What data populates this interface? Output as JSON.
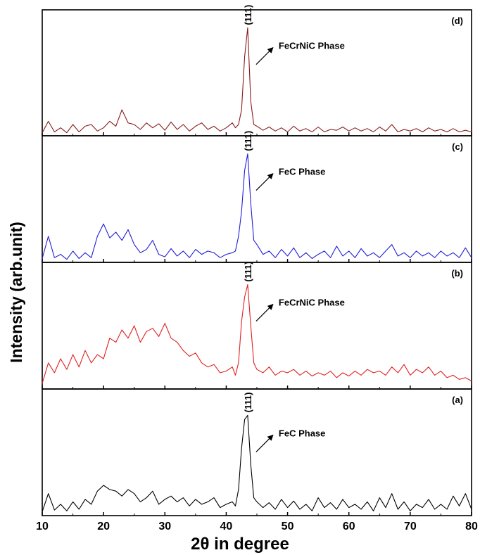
{
  "chart_data": {
    "type": "line",
    "xlabel": "2θ in degree",
    "ylabel": "Intensity (arb.unit)",
    "xlim": [
      10,
      80
    ],
    "xticks": [
      10,
      20,
      30,
      40,
      50,
      60,
      70,
      80
    ],
    "xtick_labels": [
      "10",
      "20",
      "30",
      "40",
      "50",
      "60",
      "70",
      "80"
    ],
    "grid": false,
    "stacked_panels": true,
    "panels": [
      {
        "label": "(d)",
        "color": "#8b1a1a",
        "peak_label": "(111)",
        "annotation": "FeCrNiC Phase",
        "x": [
          10,
          11,
          12,
          13,
          14,
          15,
          16,
          17,
          18,
          19,
          20,
          21,
          22,
          23,
          24,
          25,
          26,
          27,
          28,
          29,
          30,
          31,
          32,
          33,
          34,
          35,
          36,
          37,
          38,
          39,
          40,
          41,
          41.5,
          42,
          42.5,
          43,
          43.5,
          44,
          44.5,
          45,
          46,
          47,
          48,
          49,
          50,
          51,
          52,
          53,
          54,
          55,
          56,
          57,
          58,
          59,
          60,
          61,
          62,
          63,
          64,
          65,
          66,
          67,
          68,
          69,
          70,
          71,
          72,
          73,
          74,
          75,
          76,
          77,
          78,
          79,
          80
        ],
        "y": [
          2,
          16,
          3,
          8,
          2,
          12,
          3,
          10,
          12,
          4,
          8,
          16,
          10,
          30,
          14,
          12,
          6,
          14,
          8,
          13,
          5,
          15,
          6,
          12,
          4,
          10,
          14,
          6,
          10,
          4,
          8,
          14,
          8,
          12,
          30,
          95,
          130,
          40,
          12,
          10,
          5,
          9,
          4,
          8,
          3,
          10,
          4,
          7,
          3,
          9,
          3,
          6,
          5,
          9,
          4,
          8,
          4,
          7,
          3,
          9,
          4,
          12,
          3,
          6,
          4,
          7,
          3,
          8,
          4,
          6,
          3,
          7,
          3,
          5,
          3
        ],
        "ymax": 140
      },
      {
        "label": "(c)",
        "color": "#1f1fd6",
        "peak_label": "(111)",
        "annotation": "FeC Phase",
        "x": [
          10,
          11,
          12,
          13,
          14,
          15,
          16,
          17,
          18,
          19,
          20,
          21,
          22,
          23,
          24,
          25,
          26,
          27,
          28,
          29,
          30,
          31,
          32,
          33,
          34,
          35,
          36,
          37,
          38,
          39,
          40,
          41,
          41.5,
          42,
          42.5,
          43,
          43.5,
          44,
          44.5,
          45,
          46,
          47,
          48,
          49,
          50,
          51,
          52,
          53,
          54,
          55,
          56,
          57,
          58,
          59,
          60,
          61,
          62,
          63,
          64,
          65,
          66,
          67,
          68,
          69,
          70,
          71,
          72,
          73,
          74,
          75,
          76,
          77,
          78,
          79,
          80
        ],
        "y": [
          3,
          30,
          4,
          8,
          2,
          12,
          3,
          10,
          4,
          30,
          45,
          28,
          35,
          25,
          38,
          20,
          10,
          14,
          25,
          8,
          5,
          15,
          6,
          12,
          4,
          14,
          8,
          12,
          10,
          4,
          8,
          10,
          12,
          30,
          60,
          110,
          130,
          70,
          25,
          20,
          8,
          12,
          4,
          14,
          6,
          16,
          4,
          10,
          3,
          8,
          12,
          4,
          18,
          6,
          12,
          4,
          15,
          6,
          10,
          4,
          12,
          20,
          6,
          10,
          4,
          12,
          6,
          10,
          4,
          12,
          6,
          10,
          4,
          16,
          4
        ],
        "ymax": 140
      },
      {
        "label": "(b)",
        "color": "#e02020",
        "peak_label": "(111)",
        "annotation": "FeCrNiC Phase",
        "x": [
          10,
          11,
          12,
          13,
          14,
          15,
          16,
          17,
          18,
          19,
          20,
          21,
          22,
          23,
          24,
          25,
          26,
          27,
          28,
          29,
          30,
          31,
          32,
          33,
          34,
          35,
          36,
          37,
          38,
          39,
          40,
          41,
          41.5,
          42,
          42.5,
          43,
          43.5,
          44,
          44.5,
          45,
          46,
          47,
          48,
          49,
          50,
          51,
          52,
          53,
          54,
          55,
          56,
          57,
          58,
          59,
          60,
          61,
          62,
          63,
          64,
          65,
          66,
          67,
          68,
          69,
          70,
          71,
          72,
          73,
          74,
          75,
          76,
          77,
          78,
          79,
          80
        ],
        "y": [
          5,
          30,
          18,
          35,
          22,
          40,
          25,
          45,
          30,
          40,
          35,
          60,
          55,
          70,
          60,
          75,
          55,
          68,
          72,
          62,
          78,
          60,
          55,
          45,
          38,
          42,
          30,
          25,
          28,
          18,
          20,
          25,
          15,
          30,
          80,
          110,
          125,
          75,
          30,
          22,
          18,
          25,
          15,
          20,
          18,
          22,
          15,
          20,
          14,
          18,
          15,
          20,
          12,
          18,
          14,
          20,
          15,
          22,
          18,
          20,
          15,
          25,
          18,
          28,
          15,
          22,
          18,
          25,
          15,
          20,
          12,
          15,
          10,
          12,
          8
        ],
        "ymax": 140
      },
      {
        "label": "(a)",
        "color": "#000000",
        "peak_label": "(111)",
        "annotation": "FeC Phase",
        "x": [
          10,
          11,
          12,
          13,
          14,
          15,
          16,
          17,
          18,
          19,
          20,
          21,
          22,
          23,
          24,
          25,
          26,
          27,
          28,
          29,
          30,
          31,
          32,
          33,
          34,
          35,
          36,
          37,
          38,
          39,
          40,
          41,
          41.5,
          42,
          42.5,
          43,
          43.5,
          44,
          44.5,
          45,
          46,
          47,
          48,
          49,
          50,
          51,
          52,
          53,
          54,
          55,
          56,
          57,
          58,
          59,
          60,
          61,
          62,
          63,
          64,
          65,
          66,
          67,
          68,
          69,
          70,
          71,
          72,
          73,
          74,
          75,
          76,
          77,
          78,
          79,
          80
        ],
        "y": [
          3,
          25,
          5,
          12,
          4,
          15,
          6,
          18,
          12,
          28,
          35,
          30,
          28,
          22,
          30,
          25,
          15,
          20,
          28,
          12,
          18,
          22,
          15,
          20,
          10,
          18,
          12,
          15,
          20,
          8,
          12,
          15,
          10,
          30,
          80,
          115,
          120,
          60,
          20,
          15,
          8,
          14,
          6,
          18,
          8,
          16,
          6,
          12,
          4,
          20,
          8,
          14,
          6,
          18,
          8,
          12,
          6,
          15,
          4,
          20,
          8,
          25,
          6,
          15,
          4,
          12,
          8,
          18,
          6,
          12,
          6,
          22,
          10,
          25,
          6
        ],
        "ymax": 140
      }
    ]
  }
}
